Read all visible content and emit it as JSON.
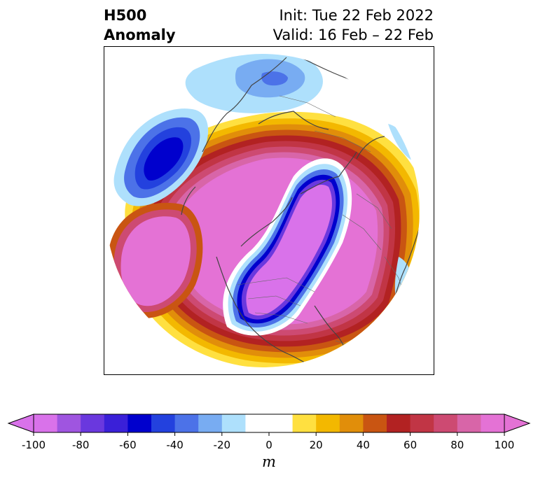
{
  "title": {
    "left_line1": "H500",
    "left_line2": "Anomaly",
    "right_line1": "Init: Tue 22 Feb 2022",
    "right_line2": "Valid: 16 Feb – 22 Feb"
  },
  "colorbar": {
    "unit_label": "m",
    "ticks": [
      "-100",
      "-80",
      "-60",
      "-40",
      "-20",
      "0",
      "20",
      "40",
      "60",
      "80",
      "100"
    ],
    "tick_values": [
      -100,
      -80,
      -60,
      -40,
      -20,
      0,
      20,
      40,
      60,
      80,
      100
    ],
    "range": [
      -100,
      100
    ],
    "step": 10,
    "extend": "both",
    "colors": [
      "#d972ea",
      "#9f55e0",
      "#6a38de",
      "#3a20d8",
      "#0000cd",
      "#2341de",
      "#4c72e8",
      "#78acf2",
      "#aee0fc",
      "#ffffff",
      "#ffffff",
      "#ffe040",
      "#f3b800",
      "#e18e0a",
      "#c95512",
      "#b22222",
      "#c13545",
      "#cd4a72",
      "#d865a8",
      "#e472d5"
    ],
    "under_color": "#d972ea",
    "over_color": "#e472d5"
  },
  "map": {
    "projection": "north-polar-stereographic",
    "field": "500 hPa geopotential height anomaly",
    "features": [
      {
        "name": "high-anomaly-ring",
        "sign": "positive",
        "max_value": 100
      },
      {
        "name": "low-anomaly-polar-lobe",
        "sign": "negative",
        "min_value": -100
      },
      {
        "name": "low-anomaly-north-pacific",
        "sign": "negative",
        "min_value": -60
      },
      {
        "name": "low-anomaly-siberia",
        "sign": "negative",
        "min_value": -40
      }
    ]
  }
}
